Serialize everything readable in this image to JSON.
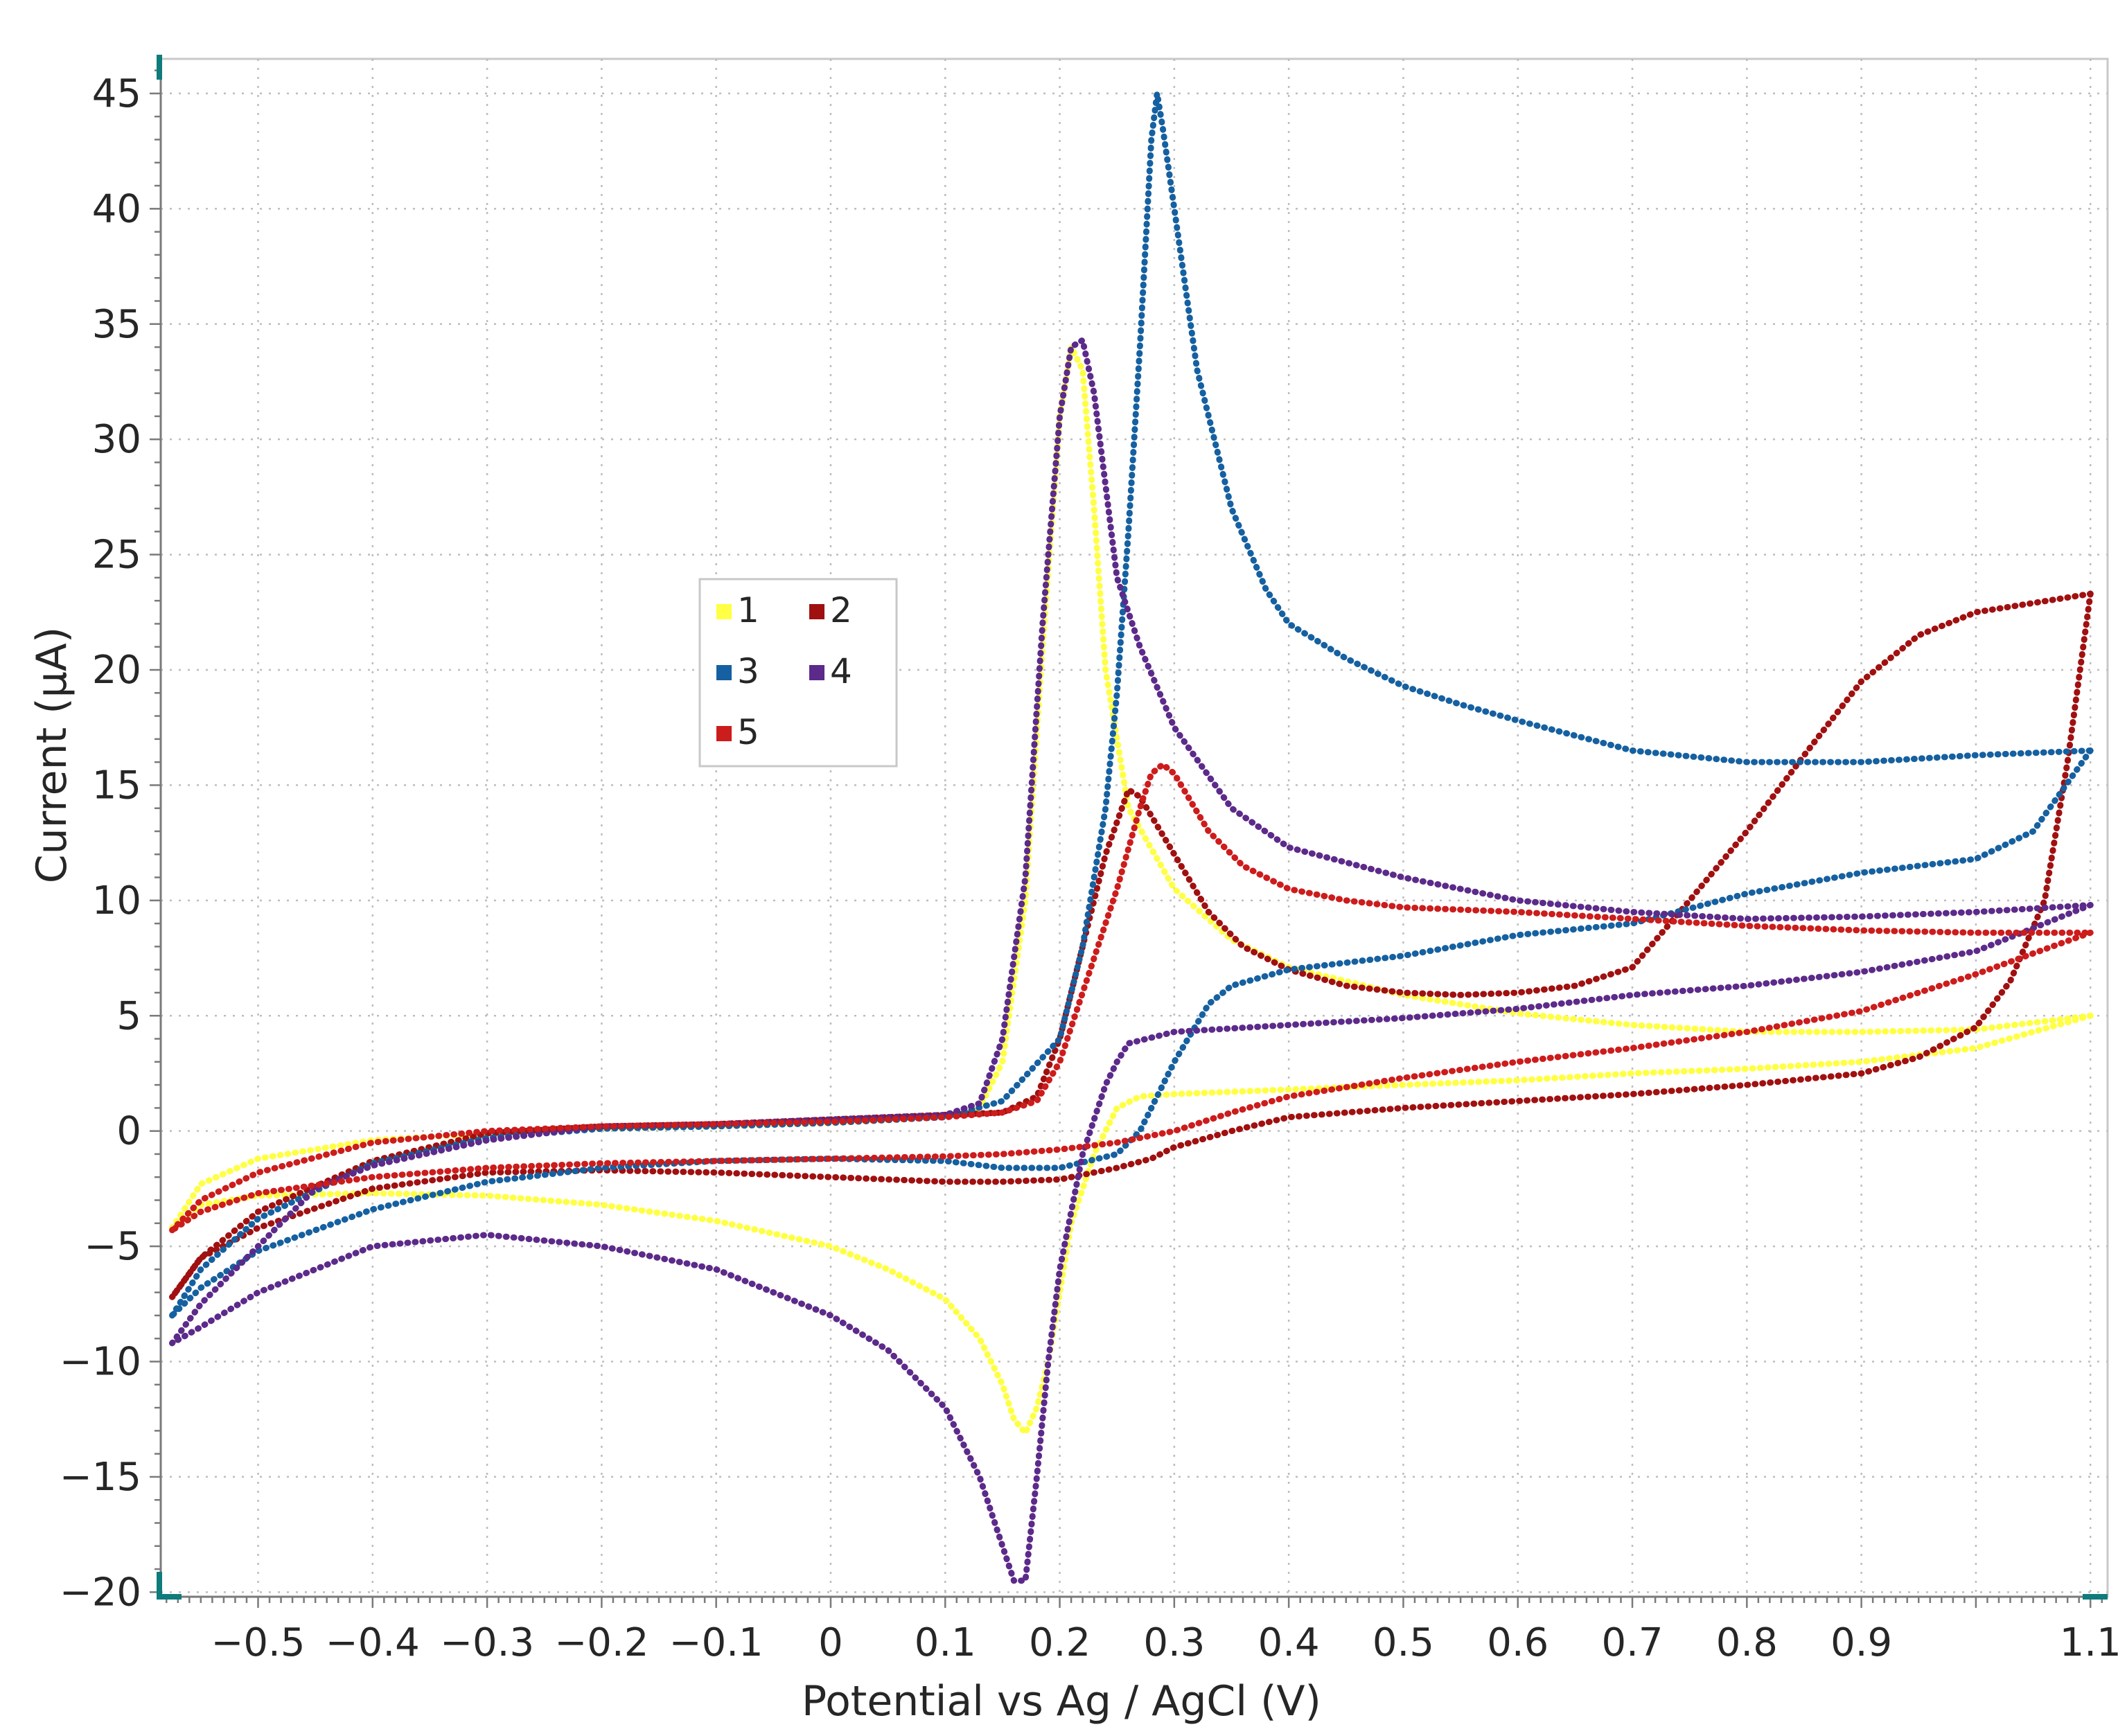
{
  "chart_data": {
    "type": "line",
    "title": "",
    "xlabel": "Potential vs Ag / AgCl (V)",
    "ylabel": "Current (μA)",
    "xlim": [
      -0.585,
      1.115
    ],
    "ylim": [
      -20.2,
      46.5
    ],
    "grid": true,
    "legend_position": "center-left",
    "xticks": [
      -0.5,
      -0.4,
      -0.3,
      -0.2,
      -0.1,
      0,
      0.1,
      0.2,
      0.3,
      0.4,
      0.5,
      0.6,
      0.7,
      0.8,
      0.9,
      1.1
    ],
    "xtick_labels": [
      "−0.5",
      "−0.4",
      "−0.3",
      "−0.2",
      "−0.1",
      "0",
      "0.1",
      "0.2",
      "0.3",
      "0.4",
      "0.5",
      "0.6",
      "0.7",
      "0.8",
      "0.9",
      "1.1"
    ],
    "xgrid": [
      -0.5,
      -0.4,
      -0.3,
      -0.2,
      -0.1,
      0,
      0.1,
      0.2,
      0.3,
      0.4,
      0.5,
      0.6,
      0.7,
      0.8,
      0.9,
      1.0,
      1.1
    ],
    "yticks": [
      45,
      40,
      35,
      30,
      25,
      20,
      15,
      10,
      5,
      0,
      -5,
      -10,
      -15,
      -20
    ],
    "ytick_labels": [
      "45",
      "40",
      "35",
      "30",
      "25",
      "20",
      "15",
      "10",
      "5",
      "0",
      "−5",
      "−10",
      "−15",
      "−20"
    ],
    "series": [
      {
        "name": "1",
        "color": "#ffff44",
        "forward": [
          [
            -0.575,
            -4.2
          ],
          [
            -0.55,
            -2.3
          ],
          [
            -0.5,
            -1.2
          ],
          [
            -0.4,
            -0.4
          ],
          [
            -0.3,
            -0.1
          ],
          [
            -0.2,
            0.1
          ],
          [
            -0.1,
            0.2
          ],
          [
            0,
            0.35
          ],
          [
            0.1,
            0.6
          ],
          [
            0.13,
            1.0
          ],
          [
            0.15,
            3
          ],
          [
            0.17,
            10
          ],
          [
            0.185,
            21
          ],
          [
            0.2,
            31
          ],
          [
            0.21,
            34
          ],
          [
            0.22,
            33
          ],
          [
            0.23,
            27
          ],
          [
            0.24,
            20
          ],
          [
            0.26,
            14
          ],
          [
            0.3,
            10.5
          ],
          [
            0.35,
            8.3
          ],
          [
            0.4,
            7.1
          ],
          [
            0.5,
            5.9
          ],
          [
            0.6,
            5.1
          ],
          [
            0.7,
            4.6
          ],
          [
            0.8,
            4.3
          ],
          [
            0.9,
            4.3
          ],
          [
            1.0,
            4.4
          ],
          [
            1.1,
            5.0
          ]
        ],
        "reverse": [
          [
            1.1,
            5.0
          ],
          [
            1.0,
            3.6
          ],
          [
            0.9,
            3.0
          ],
          [
            0.8,
            2.7
          ],
          [
            0.7,
            2.5
          ],
          [
            0.6,
            2.2
          ],
          [
            0.5,
            2.0
          ],
          [
            0.4,
            1.8
          ],
          [
            0.3,
            1.6
          ],
          [
            0.27,
            1.5
          ],
          [
            0.25,
            1.0
          ],
          [
            0.23,
            -1
          ],
          [
            0.21,
            -4
          ],
          [
            0.2,
            -7
          ],
          [
            0.19,
            -10
          ],
          [
            0.18,
            -12
          ],
          [
            0.17,
            -13.1
          ],
          [
            0.16,
            -12.5
          ],
          [
            0.15,
            -11
          ],
          [
            0.13,
            -9
          ],
          [
            0.1,
            -7.3
          ],
          [
            0.05,
            -6
          ],
          [
            0,
            -5
          ],
          [
            -0.1,
            -3.9
          ],
          [
            -0.2,
            -3.2
          ],
          [
            -0.3,
            -2.8
          ],
          [
            -0.4,
            -2.7
          ],
          [
            -0.5,
            -2.8
          ],
          [
            -0.55,
            -3.2
          ],
          [
            -0.575,
            -4.2
          ]
        ]
      },
      {
        "name": "2",
        "color": "#a01010",
        "forward": [
          [
            -0.575,
            -7.2
          ],
          [
            -0.55,
            -5.5
          ],
          [
            -0.5,
            -3.5
          ],
          [
            -0.4,
            -1.3
          ],
          [
            -0.3,
            -0.1
          ],
          [
            -0.2,
            0.2
          ],
          [
            -0.1,
            0.3
          ],
          [
            0,
            0.5
          ],
          [
            0.1,
            0.7
          ],
          [
            0.15,
            0.8
          ],
          [
            0.18,
            1.5
          ],
          [
            0.2,
            4
          ],
          [
            0.22,
            8
          ],
          [
            0.24,
            12
          ],
          [
            0.26,
            14.8
          ],
          [
            0.27,
            14.5
          ],
          [
            0.3,
            12
          ],
          [
            0.33,
            9.5
          ],
          [
            0.36,
            8.0
          ],
          [
            0.4,
            7.0
          ],
          [
            0.45,
            6.3
          ],
          [
            0.5,
            6.0
          ],
          [
            0.55,
            5.9
          ],
          [
            0.6,
            6.0
          ],
          [
            0.65,
            6.3
          ],
          [
            0.7,
            7.1
          ],
          [
            0.75,
            10
          ],
          [
            0.8,
            13
          ],
          [
            0.85,
            16.3
          ],
          [
            0.9,
            19.5
          ],
          [
            0.95,
            21.5
          ],
          [
            1.0,
            22.5
          ],
          [
            1.1,
            23.3
          ]
        ],
        "reverse": [
          [
            1.1,
            23.3
          ],
          [
            1.08,
            16
          ],
          [
            1.06,
            10
          ],
          [
            1.03,
            6.5
          ],
          [
            1.0,
            4.5
          ],
          [
            0.95,
            3.2
          ],
          [
            0.9,
            2.5
          ],
          [
            0.8,
            2.0
          ],
          [
            0.7,
            1.6
          ],
          [
            0.6,
            1.3
          ],
          [
            0.5,
            1.0
          ],
          [
            0.4,
            0.6
          ],
          [
            0.35,
            0
          ],
          [
            0.3,
            -0.7
          ],
          [
            0.28,
            -1.2
          ],
          [
            0.25,
            -1.6
          ],
          [
            0.2,
            -2.1
          ],
          [
            0.15,
            -2.2
          ],
          [
            0.1,
            -2.2
          ],
          [
            0,
            -2.0
          ],
          [
            -0.1,
            -1.8
          ],
          [
            -0.2,
            -1.7
          ],
          [
            -0.3,
            -1.8
          ],
          [
            -0.4,
            -2.5
          ],
          [
            -0.5,
            -4.2
          ],
          [
            -0.55,
            -5.5
          ],
          [
            -0.575,
            -7.2
          ]
        ]
      },
      {
        "name": "3",
        "color": "#1560a0",
        "forward": [
          [
            -0.575,
            -8.0
          ],
          [
            -0.55,
            -6.0
          ],
          [
            -0.5,
            -3.8
          ],
          [
            -0.4,
            -1.4
          ],
          [
            -0.3,
            -0.3
          ],
          [
            -0.2,
            0.1
          ],
          [
            -0.1,
            0.2
          ],
          [
            0,
            0.35
          ],
          [
            0.1,
            0.6
          ],
          [
            0.15,
            1.3
          ],
          [
            0.2,
            4
          ],
          [
            0.22,
            8
          ],
          [
            0.24,
            14
          ],
          [
            0.25,
            19
          ],
          [
            0.26,
            26
          ],
          [
            0.27,
            34
          ],
          [
            0.28,
            43
          ],
          [
            0.285,
            45
          ],
          [
            0.29,
            43.5
          ],
          [
            0.3,
            40
          ],
          [
            0.32,
            33
          ],
          [
            0.35,
            27
          ],
          [
            0.38,
            23.5
          ],
          [
            0.4,
            22
          ],
          [
            0.45,
            20.5
          ],
          [
            0.5,
            19.3
          ],
          [
            0.55,
            18.5
          ],
          [
            0.6,
            17.8
          ],
          [
            0.7,
            16.5
          ],
          [
            0.8,
            16.0
          ],
          [
            0.9,
            16.0
          ],
          [
            1.0,
            16.3
          ],
          [
            1.1,
            16.5
          ]
        ],
        "reverse": [
          [
            1.1,
            16.5
          ],
          [
            1.05,
            13
          ],
          [
            1.0,
            11.8
          ],
          [
            0.9,
            11.2
          ],
          [
            0.8,
            10.3
          ],
          [
            0.7,
            9.0
          ],
          [
            0.6,
            8.5
          ],
          [
            0.5,
            7.6
          ],
          [
            0.4,
            7.0
          ],
          [
            0.35,
            6.3
          ],
          [
            0.33,
            5.5
          ],
          [
            0.3,
            3
          ],
          [
            0.27,
            0
          ],
          [
            0.25,
            -1
          ],
          [
            0.2,
            -1.6
          ],
          [
            0.15,
            -1.6
          ],
          [
            0.1,
            -1.3
          ],
          [
            0,
            -1.2
          ],
          [
            -0.1,
            -1.3
          ],
          [
            -0.2,
            -1.6
          ],
          [
            -0.3,
            -2.2
          ],
          [
            -0.4,
            -3.4
          ],
          [
            -0.5,
            -5.2
          ],
          [
            -0.55,
            -6.8
          ],
          [
            -0.575,
            -8.0
          ]
        ]
      },
      {
        "name": "4",
        "color": "#5c2a8a",
        "forward": [
          [
            -0.575,
            -9.2
          ],
          [
            -0.55,
            -7.5
          ],
          [
            -0.5,
            -5.0
          ],
          [
            -0.45,
            -2.5
          ],
          [
            -0.4,
            -1.5
          ],
          [
            -0.3,
            -0.4
          ],
          [
            -0.2,
            0.2
          ],
          [
            -0.1,
            0.3
          ],
          [
            0,
            0.5
          ],
          [
            0.1,
            0.7
          ],
          [
            0.13,
            1.2
          ],
          [
            0.15,
            4
          ],
          [
            0.17,
            11
          ],
          [
            0.185,
            22
          ],
          [
            0.2,
            31
          ],
          [
            0.21,
            34
          ],
          [
            0.22,
            34.3
          ],
          [
            0.23,
            32
          ],
          [
            0.24,
            28
          ],
          [
            0.25,
            24
          ],
          [
            0.27,
            21
          ],
          [
            0.3,
            17.5
          ],
          [
            0.35,
            14
          ],
          [
            0.4,
            12.3
          ],
          [
            0.5,
            11.0
          ],
          [
            0.6,
            10.0
          ],
          [
            0.7,
            9.5
          ],
          [
            0.8,
            9.2
          ],
          [
            0.9,
            9.3
          ],
          [
            1.0,
            9.5
          ],
          [
            1.1,
            9.8
          ]
        ],
        "reverse": [
          [
            1.1,
            9.8
          ],
          [
            1.0,
            7.8
          ],
          [
            0.9,
            6.9
          ],
          [
            0.8,
            6.3
          ],
          [
            0.7,
            5.9
          ],
          [
            0.6,
            5.3
          ],
          [
            0.5,
            4.9
          ],
          [
            0.4,
            4.6
          ],
          [
            0.3,
            4.3
          ],
          [
            0.26,
            3.8
          ],
          [
            0.25,
            3
          ],
          [
            0.24,
            2
          ],
          [
            0.22,
            -1
          ],
          [
            0.2,
            -6
          ],
          [
            0.19,
            -10
          ],
          [
            0.18,
            -15
          ],
          [
            0.17,
            -19.5
          ],
          [
            0.16,
            -19.5
          ],
          [
            0.15,
            -18
          ],
          [
            0.13,
            -15
          ],
          [
            0.1,
            -12
          ],
          [
            0.05,
            -9.5
          ],
          [
            0,
            -8
          ],
          [
            -0.1,
            -6
          ],
          [
            -0.2,
            -5
          ],
          [
            -0.3,
            -4.5
          ],
          [
            -0.4,
            -5
          ],
          [
            -0.5,
            -7
          ],
          [
            -0.55,
            -8.5
          ],
          [
            -0.575,
            -9.2
          ]
        ]
      },
      {
        "name": "5",
        "color": "#cc1c1c",
        "forward": [
          [
            -0.575,
            -4.3
          ],
          [
            -0.55,
            -3.0
          ],
          [
            -0.5,
            -1.8
          ],
          [
            -0.4,
            -0.5
          ],
          [
            -0.3,
            0
          ],
          [
            -0.2,
            0.2
          ],
          [
            -0.1,
            0.3
          ],
          [
            0,
            0.4
          ],
          [
            0.1,
            0.6
          ],
          [
            0.15,
            0.8
          ],
          [
            0.18,
            1.3
          ],
          [
            0.2,
            3
          ],
          [
            0.22,
            6
          ],
          [
            0.25,
            10.5
          ],
          [
            0.27,
            14
          ],
          [
            0.28,
            15.5
          ],
          [
            0.29,
            15.9
          ],
          [
            0.3,
            15.5
          ],
          [
            0.33,
            13
          ],
          [
            0.36,
            11.5
          ],
          [
            0.4,
            10.5
          ],
          [
            0.45,
            10
          ],
          [
            0.5,
            9.7
          ],
          [
            0.6,
            9.5
          ],
          [
            0.7,
            9.2
          ],
          [
            0.8,
            8.9
          ],
          [
            0.9,
            8.7
          ],
          [
            1.0,
            8.6
          ],
          [
            1.1,
            8.6
          ]
        ],
        "reverse": [
          [
            1.1,
            8.6
          ],
          [
            1.0,
            6.8
          ],
          [
            0.9,
            5.2
          ],
          [
            0.8,
            4.3
          ],
          [
            0.7,
            3.6
          ],
          [
            0.6,
            3.0
          ],
          [
            0.5,
            2.3
          ],
          [
            0.4,
            1.5
          ],
          [
            0.35,
            0.8
          ],
          [
            0.3,
            0
          ],
          [
            0.25,
            -0.5
          ],
          [
            0.2,
            -0.8
          ],
          [
            0.15,
            -1.0
          ],
          [
            0.1,
            -1.1
          ],
          [
            0,
            -1.2
          ],
          [
            -0.1,
            -1.3
          ],
          [
            -0.2,
            -1.4
          ],
          [
            -0.3,
            -1.6
          ],
          [
            -0.4,
            -2.0
          ],
          [
            -0.5,
            -2.7
          ],
          [
            -0.55,
            -3.5
          ],
          [
            -0.575,
            -4.3
          ]
        ]
      }
    ]
  }
}
